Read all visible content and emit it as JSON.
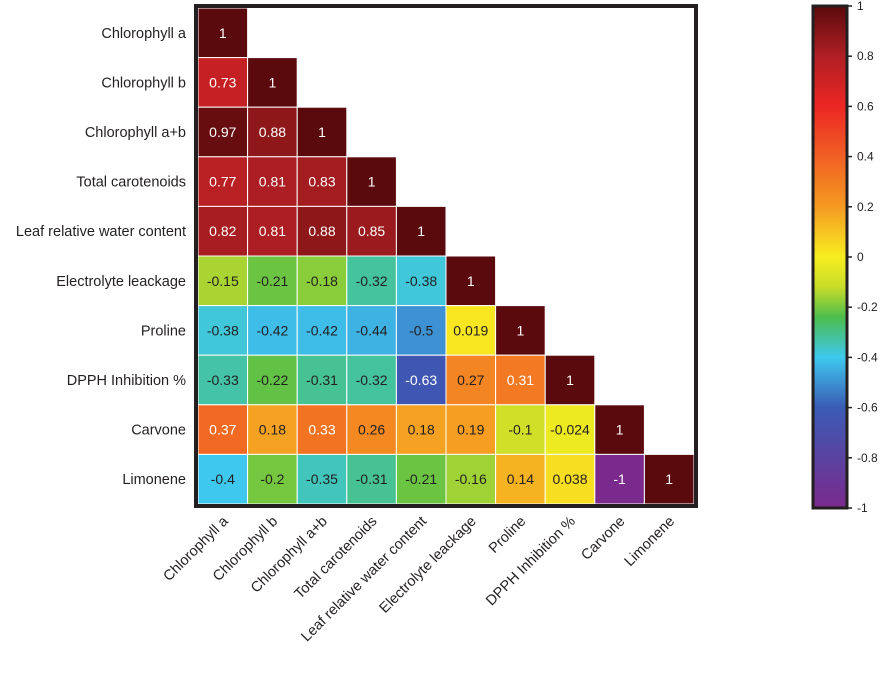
{
  "chart_data": {
    "type": "heatmap",
    "subtype": "lower-triangular correlation matrix",
    "variables": [
      "Chlorophyll a",
      "Chlorophyll b",
      "Chlorophyll a+b",
      "Total carotenoids",
      "Leaf relative water content",
      "Electrolyte leackage",
      "Proline",
      "DPPH Inhibition %",
      "Carvone",
      "Limonene"
    ],
    "matrix": [
      [
        1
      ],
      [
        0.73,
        1
      ],
      [
        0.97,
        0.88,
        1
      ],
      [
        0.77,
        0.81,
        0.83,
        1
      ],
      [
        0.82,
        0.81,
        0.88,
        0.85,
        1
      ],
      [
        -0.15,
        -0.21,
        -0.18,
        -0.32,
        -0.38,
        1
      ],
      [
        -0.38,
        -0.42,
        -0.42,
        -0.44,
        -0.5,
        0.019,
        1
      ],
      [
        -0.33,
        -0.22,
        -0.31,
        -0.32,
        -0.63,
        0.27,
        0.31,
        1
      ],
      [
        0.37,
        0.18,
        0.33,
        0.26,
        0.18,
        0.19,
        -0.1,
        -0.024,
        1
      ],
      [
        -0.4,
        -0.2,
        -0.35,
        -0.31,
        -0.21,
        -0.16,
        0.14,
        0.038,
        -1,
        1
      ]
    ],
    "colorbar": {
      "range": [
        -1,
        1
      ],
      "ticks": [
        "1",
        "0.8",
        "0.6",
        "0.4",
        "0.2",
        "0",
        "-0.2",
        "-0.4",
        "-0.6",
        "-0.8",
        "-1"
      ],
      "colors": [
        "#7a2a8c",
        "#3a5bb5",
        "#3ec8ee",
        "#4cbd4c",
        "#c8dc28",
        "#f7ee20",
        "#f59a22",
        "#ec2624",
        "#b01f24",
        "#5a0a0c"
      ]
    }
  }
}
